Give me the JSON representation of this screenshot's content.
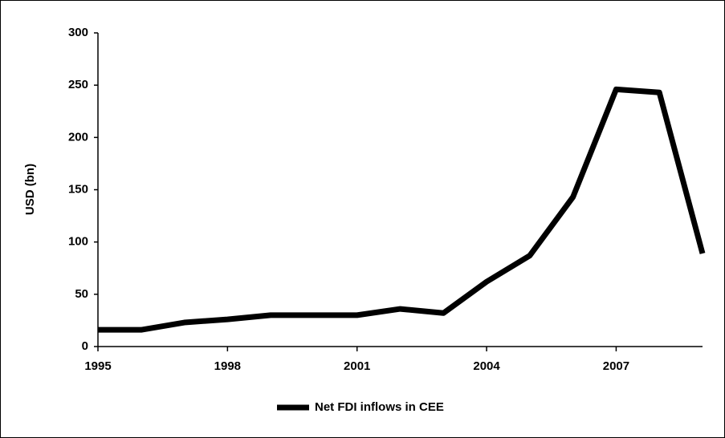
{
  "chart_data": {
    "type": "line",
    "x": [
      1995,
      1996,
      1997,
      1998,
      1999,
      2000,
      2001,
      2002,
      2003,
      2004,
      2005,
      2006,
      2007,
      2008,
      2009
    ],
    "series": [
      {
        "name": "Net FDI inflows in CEE",
        "color": "#000000",
        "values": [
          16,
          16,
          23,
          26,
          30,
          30,
          30,
          36,
          32,
          62,
          87,
          143,
          246,
          243,
          89
        ]
      }
    ],
    "xlim": [
      1995,
      2009
    ],
    "xticks": [
      1995,
      1998,
      2001,
      2004,
      2007
    ],
    "ylim": [
      0,
      300
    ],
    "yticks": [
      0,
      50,
      100,
      150,
      200,
      250,
      300
    ],
    "ylabel": "USD (bn)",
    "legend": "bottom"
  }
}
